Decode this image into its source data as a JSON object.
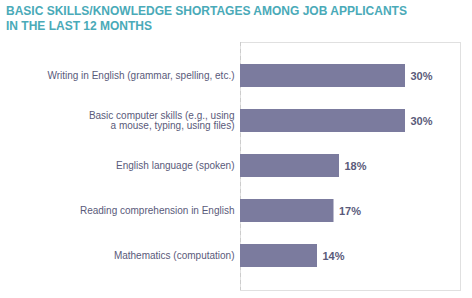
{
  "chart_data": {
    "type": "bar",
    "orientation": "horizontal",
    "title": "BASIC SKILLS/KNOWLEDGE SHORTAGES AMONG JOB APPLICANTS\nIN THE LAST 12 MONTHS",
    "categories": [
      "Writing in English (grammar, spelling, etc.)",
      "Basic computer skills (e.g., using\na mouse, typing, using files)",
      "English language (spoken)",
      "Reading comprehension in English",
      "Mathematics (computation)"
    ],
    "values": [
      30,
      30,
      18,
      17,
      14
    ],
    "value_labels": [
      "30%",
      "30%",
      "18%",
      "17%",
      "14%"
    ],
    "data_labels": true,
    "color": "#7b7b9e",
    "xlim": [
      0,
      40
    ],
    "grid": false,
    "tick_labels": "y"
  }
}
